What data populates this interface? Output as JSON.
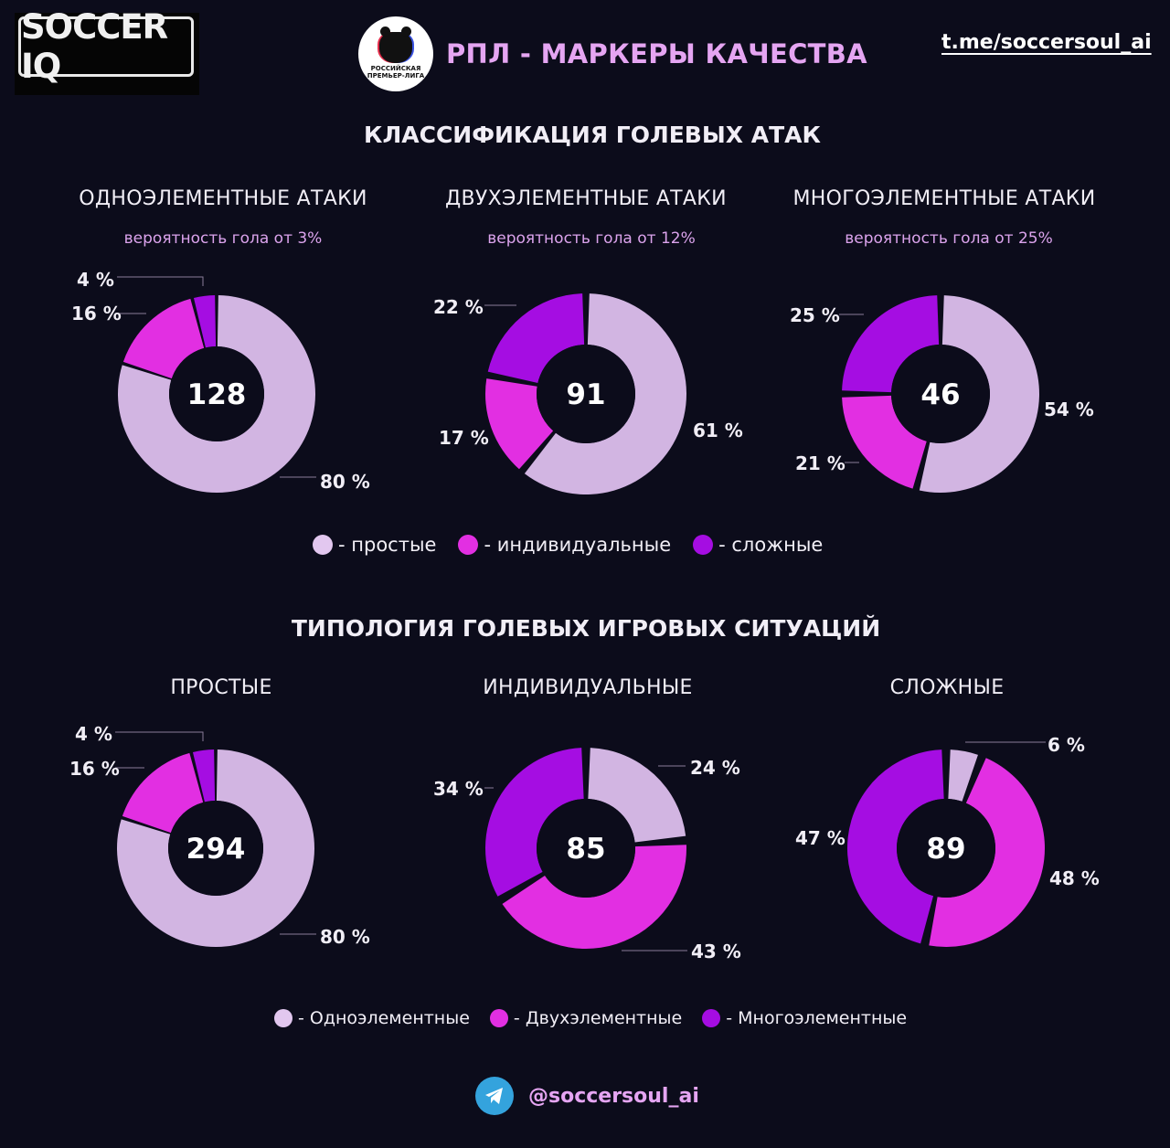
{
  "header": {
    "logo_text": "SOCCER IQ",
    "badge_text": "РОССИЙСКАЯ ПРЕМЬЕР-ЛИГА",
    "title": "РПЛ - МАРКЕРЫ КАЧЕСТВА",
    "link": "t.me/soccersoul_ai"
  },
  "colors": {
    "simple": "#d2b5e2",
    "individual": "#e22fe2",
    "complex": "#a50de2",
    "background": "#0c0c1b",
    "accent": "#e5a5f2"
  },
  "sections": [
    {
      "title": "КЛАССИФИКАЦИЯ ГОЛЕВЫХ АТАК",
      "legend": [
        "- простые",
        "- индивидуальные",
        "- сложные"
      ]
    },
    {
      "title": "ТИПОЛОГИЯ ГОЛЕВЫХ ИГРОВЫХ СИТУАЦИЙ",
      "legend": [
        "- Одноэлементные",
        "- Двухэлементные",
        "- Многоэлементные"
      ]
    }
  ],
  "chart_data": [
    {
      "type": "pie",
      "title": "ОДНОЭЛЕМЕНТНЫЕ АТАКИ",
      "subtitle": "вероятность гола от 3%",
      "total": "128",
      "series": [
        {
          "name": "простые",
          "value": 80,
          "label": "80 %"
        },
        {
          "name": "индивидуальные",
          "value": 16,
          "label": "16 %"
        },
        {
          "name": "сложные",
          "value": 4,
          "label": "4 %"
        }
      ]
    },
    {
      "type": "pie",
      "title": "ДВУХЭЛЕМЕНТНЫЕ АТАКИ",
      "subtitle": "вероятность гола от 12%",
      "total": "91",
      "series": [
        {
          "name": "простые",
          "value": 61,
          "label": "61 %"
        },
        {
          "name": "индивидуальные",
          "value": 17,
          "label": "17 %"
        },
        {
          "name": "сложные",
          "value": 22,
          "label": "22 %"
        }
      ]
    },
    {
      "type": "pie",
      "title": "МНОГОЭЛЕМЕНТНЫЕ АТАКИ",
      "subtitle": "вероятность гола от 25%",
      "total": "46",
      "series": [
        {
          "name": "простые",
          "value": 54,
          "label": "54 %"
        },
        {
          "name": "индивидуальные",
          "value": 21,
          "label": "21 %"
        },
        {
          "name": "сложные",
          "value": 25,
          "label": "25 %"
        }
      ]
    },
    {
      "type": "pie",
      "title": "ПРОСТЫЕ",
      "subtitle": "",
      "total": "294",
      "series": [
        {
          "name": "Одноэлементные",
          "value": 80,
          "label": "80 %"
        },
        {
          "name": "Двухэлементные",
          "value": 16,
          "label": "16 %"
        },
        {
          "name": "Многоэлементные",
          "value": 4,
          "label": "4 %"
        }
      ]
    },
    {
      "type": "pie",
      "title": "ИНДИВИДУАЛЬНЫЕ",
      "subtitle": "",
      "total": "85",
      "series": [
        {
          "name": "Одноэлементные",
          "value": 24,
          "label": "24 %"
        },
        {
          "name": "Двухэлементные",
          "value": 43,
          "label": "43 %"
        },
        {
          "name": "Многоэлементные",
          "value": 34,
          "label": "34 %"
        }
      ]
    },
    {
      "type": "pie",
      "title": "СЛОЖНЫЕ",
      "subtitle": "",
      "total": "89",
      "series": [
        {
          "name": "Одноэлементные",
          "value": 6,
          "label": "6 %"
        },
        {
          "name": "Двухэлементные",
          "value": 48,
          "label": "48 %"
        },
        {
          "name": "Многоэлементные",
          "value": 47,
          "label": "47 %"
        }
      ]
    }
  ],
  "footer": {
    "handle": "@soccersoul_ai",
    "icon": "telegram-icon"
  }
}
